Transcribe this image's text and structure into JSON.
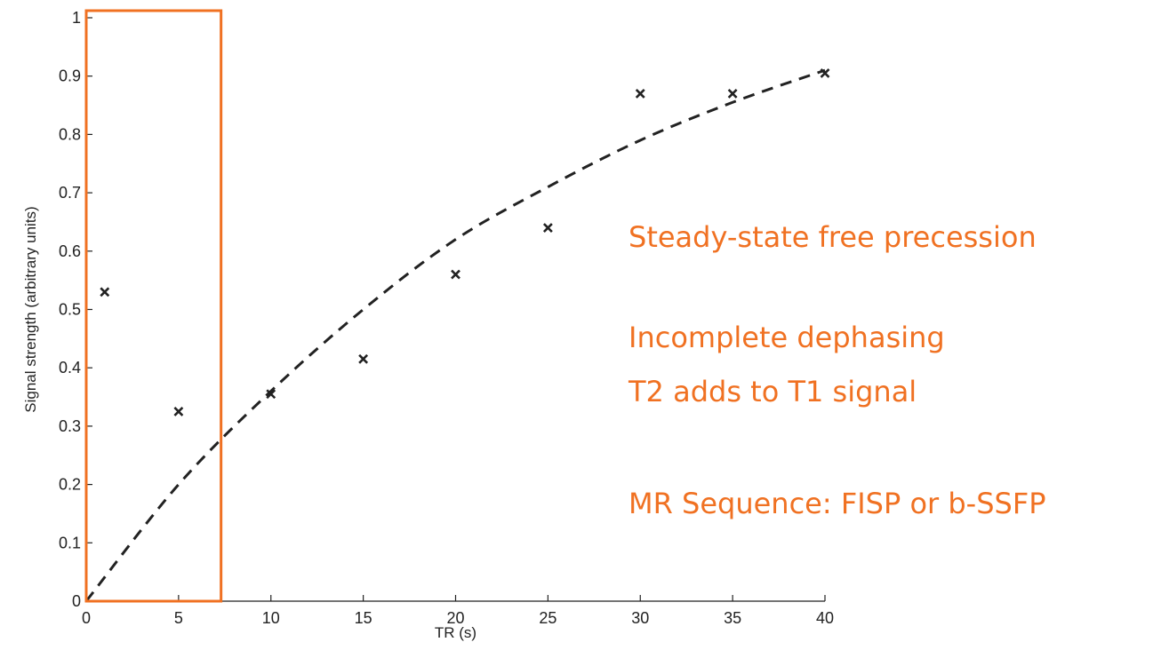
{
  "chart_data": {
    "type": "scatter",
    "xlabel": "TR (s)",
    "ylabel": "Signal strength (arbitrary units)",
    "xlim": [
      0,
      40
    ],
    "ylim": [
      0,
      1
    ],
    "x_ticks": [
      "0",
      "5",
      "10",
      "15",
      "20",
      "25",
      "30",
      "35",
      "40"
    ],
    "y_ticks": [
      "0",
      "0.1",
      "0.2",
      "0.3",
      "0.4",
      "0.5",
      "0.6",
      "0.7",
      "0.8",
      "0.9",
      "1"
    ],
    "grid": false,
    "series": [
      {
        "marker": "x",
        "color": "#222222",
        "x": [
          1,
          5,
          10,
          15,
          20,
          25,
          30,
          35,
          40
        ],
        "y": [
          0.53,
          0.325,
          0.355,
          0.415,
          0.56,
          0.64,
          0.87,
          0.87,
          0.905
        ]
      },
      {
        "style": "dashed-line",
        "color": "#222222",
        "x": [
          0,
          5,
          10,
          15,
          20,
          25,
          30,
          35,
          40
        ],
        "y": [
          0,
          0.2,
          0.36,
          0.5,
          0.62,
          0.71,
          0.79,
          0.855,
          0.91
        ]
      }
    ],
    "highlight_box": {
      "x_range": [
        0,
        7.3
      ],
      "y_range": [
        0,
        1
      ],
      "color": "#f07122"
    },
    "annotations": [
      "Steady-state free precession",
      "Incomplete dephasing",
      "T2 adds to T1 signal",
      "MR Sequence: FISP or b-SSFP"
    ],
    "annotation_color": "#f07122"
  }
}
